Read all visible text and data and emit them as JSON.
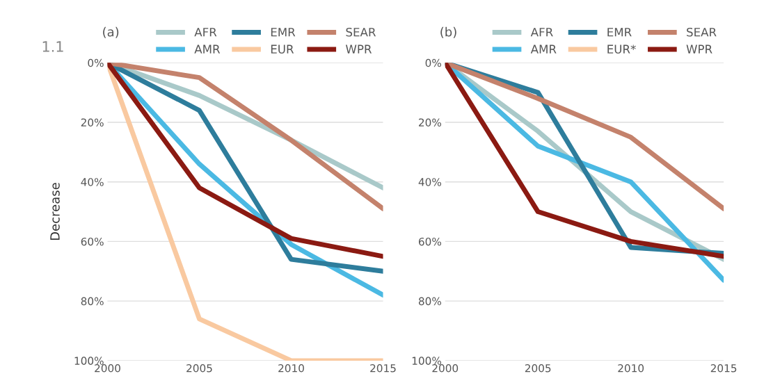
{
  "chart_data": [
    {
      "type": "line",
      "title": "(a)",
      "ylabel": "Decrease",
      "annotations": [
        "1.1"
      ],
      "x": [
        2000,
        2005,
        2010,
        2015
      ],
      "xlim": [
        2000,
        2015
      ],
      "xticks": [
        2000,
        2005,
        2010,
        2015
      ],
      "ylim": [
        100,
        0
      ],
      "yticks": [
        {
          "value": 0,
          "label": "0%"
        },
        {
          "value": 20,
          "label": "20%"
        },
        {
          "value": 40,
          "label": "40%"
        },
        {
          "value": 60,
          "label": "60%"
        },
        {
          "value": 80,
          "label": "80%"
        },
        {
          "value": 100,
          "label": "100%"
        }
      ],
      "grid": "y",
      "legend": "top right",
      "marker": "none",
      "line_style": "solid",
      "series": [
        {
          "name": "AFR",
          "color": "#a9c9c9",
          "values": [
            0,
            11,
            26,
            42
          ]
        },
        {
          "name": "AMR",
          "color": "#4bb9e3",
          "values": [
            0,
            34,
            61,
            78
          ]
        },
        {
          "name": "EMR",
          "color": "#2e7d9c",
          "values": [
            0,
            16,
            66,
            70
          ]
        },
        {
          "name": "EUR",
          "color": "#f9c9a0",
          "values": [
            0,
            86,
            100,
            100
          ]
        },
        {
          "name": "SEAR",
          "color": "#c4826c",
          "values": [
            0,
            5,
            26,
            49
          ]
        },
        {
          "name": "WPR",
          "color": "#8b1a12",
          "values": [
            0,
            42,
            59,
            65
          ]
        }
      ]
    },
    {
      "type": "line",
      "title": "(b)",
      "x": [
        2000,
        2005,
        2010,
        2015
      ],
      "xlim": [
        2000,
        2015
      ],
      "xticks": [
        2000,
        2005,
        2010,
        2015
      ],
      "ylim": [
        100,
        0
      ],
      "yticks": [
        {
          "value": 0,
          "label": "0%"
        },
        {
          "value": 20,
          "label": "20%"
        },
        {
          "value": 40,
          "label": "40%"
        },
        {
          "value": 60,
          "label": "60%"
        },
        {
          "value": 80,
          "label": "80%"
        },
        {
          "value": 100,
          "label": "100%"
        }
      ],
      "grid": "y",
      "legend": "top right",
      "marker": "none",
      "line_style": "solid",
      "series": [
        {
          "name": "AFR",
          "color": "#a9c9c9",
          "values": [
            0,
            23,
            50,
            66
          ]
        },
        {
          "name": "AMR",
          "color": "#4bb9e3",
          "values": [
            0,
            28,
            40,
            73
          ]
        },
        {
          "name": "EMR",
          "color": "#2e7d9c",
          "values": [
            0,
            10,
            62,
            64
          ]
        },
        {
          "name": "EUR*",
          "color": "#f9c9a0",
          "values": [
            null,
            null,
            null,
            null
          ]
        },
        {
          "name": "SEAR",
          "color": "#c4826c",
          "values": [
            0,
            12,
            25,
            49
          ]
        },
        {
          "name": "WPR",
          "color": "#8b1a12",
          "values": [
            0,
            50,
            60,
            65
          ]
        }
      ]
    }
  ]
}
